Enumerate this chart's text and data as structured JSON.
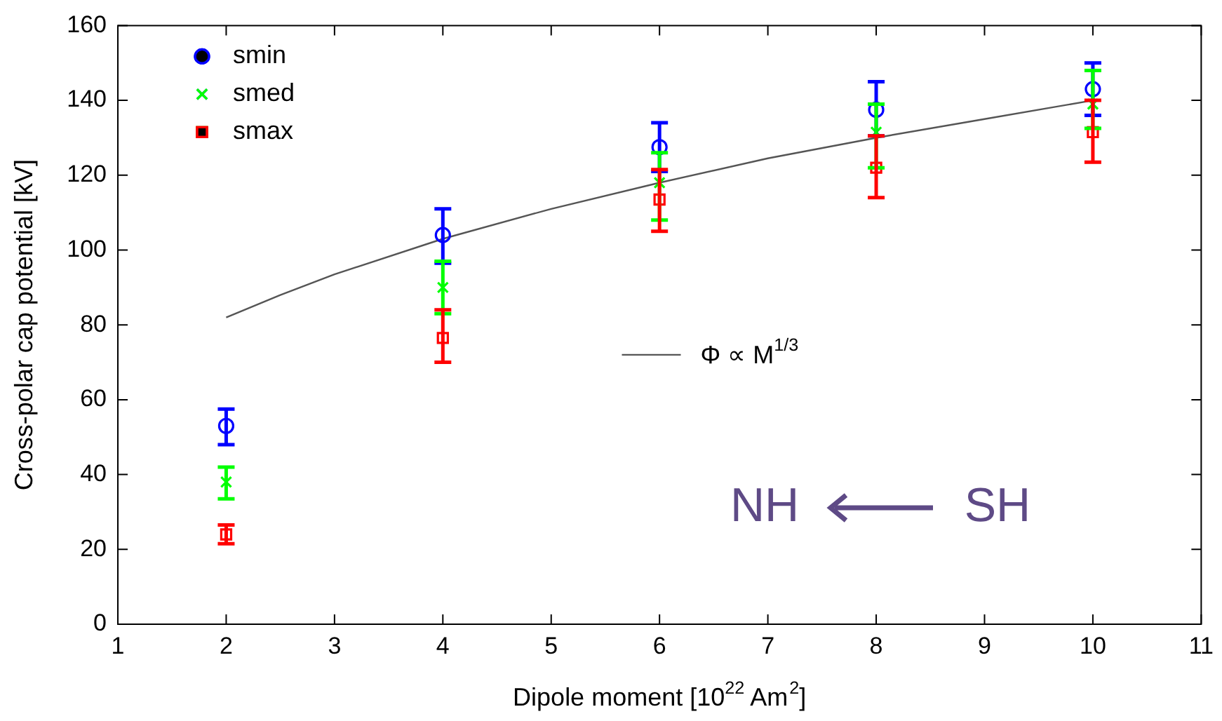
{
  "chart_data": {
    "type": "scatter",
    "xlabel": "Dipole moment [10$^{22}$ Am$^{2}$]",
    "ylabel": "Cross-polar cap potential [kV]",
    "x": [
      2,
      4,
      6,
      8,
      10
    ],
    "series": [
      {
        "name": "smin",
        "color": "#0000ff",
        "marker": "circle",
        "values": [
          53,
          104,
          127.5,
          137.5,
          143
        ],
        "errors": [
          [
            48,
            57.5
          ],
          [
            96.5,
            111
          ],
          [
            121,
            134
          ],
          [
            130.5,
            145
          ],
          [
            136,
            150
          ]
        ]
      },
      {
        "name": "smed",
        "color": "#00ff00",
        "marker": "cross",
        "values": [
          38,
          90,
          118,
          131.5,
          139
        ],
        "errors": [
          [
            33.5,
            42
          ],
          [
            83,
            97
          ],
          [
            108,
            126
          ],
          [
            122,
            139
          ],
          [
            132.5,
            148
          ]
        ]
      },
      {
        "name": "smax",
        "color": "#ff0000",
        "marker": "square",
        "values": [
          24,
          76.5,
          113.5,
          122,
          131.5
        ],
        "errors": [
          [
            21.5,
            26.5
          ],
          [
            70,
            84
          ],
          [
            105,
            121.5
          ],
          [
            114,
            130.5
          ],
          [
            123.5,
            140
          ]
        ]
      },
      {
        "name": "Φ ∝ M$^{1/3}$",
        "type": "line",
        "color": "#555555",
        "marker": "none",
        "x": [
          2,
          2.5,
          3,
          4,
          5,
          6,
          7,
          8,
          9,
          10
        ],
        "values": [
          82,
          88,
          93.5,
          103,
          111,
          118,
          124.5,
          130,
          135,
          140
        ]
      }
    ],
    "xlim": [
      1,
      11
    ],
    "xticks": [
      1,
      2,
      3,
      4,
      5,
      6,
      7,
      8,
      9,
      10,
      11
    ],
    "ylim": [
      0,
      160
    ],
    "yticks": [
      0,
      20,
      40,
      60,
      80,
      100,
      120,
      140,
      160
    ],
    "grid": false,
    "legend": "top left",
    "annotations": [
      "NH",
      "SH"
    ]
  }
}
